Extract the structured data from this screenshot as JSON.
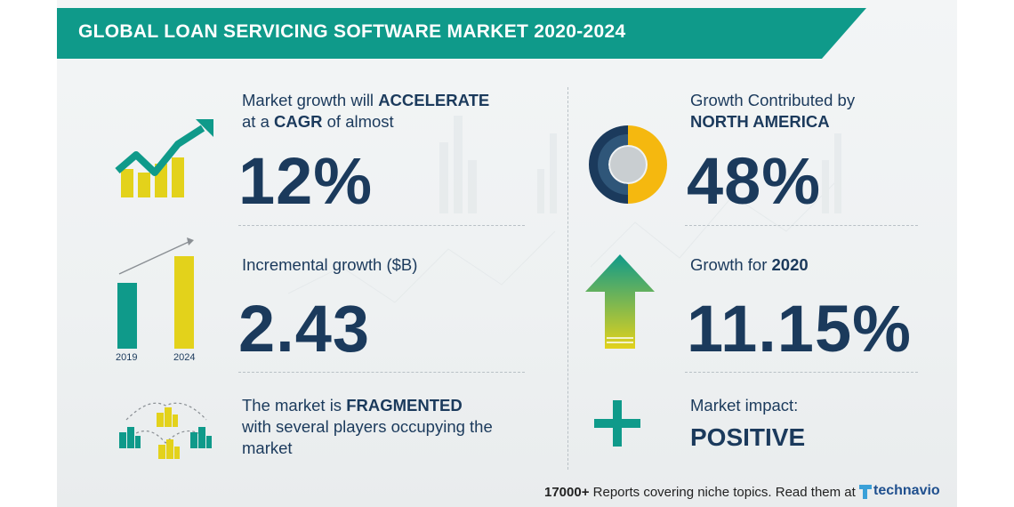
{
  "title": "GLOBAL LOAN SERVICING SOFTWARE MARKET 2020-2024",
  "left": {
    "cagr": {
      "line1_pre": "Market growth will ",
      "line1_bold": "ACCELERATE",
      "line2_pre": "at a ",
      "line2_bold": "CAGR",
      "line2_post": " of almost",
      "value": "12%",
      "icon": "growth-chart-arrow-icon"
    },
    "incremental": {
      "label": "Incremental growth ($B)",
      "value": "2.43",
      "icon": "bar-comparison-icon",
      "year_start": "2019",
      "year_end": "2024",
      "bar_ratio": 0.65
    },
    "fragmented": {
      "line1_pre": "The market is ",
      "line1_bold": "FRAGMENTED",
      "line2": "with several players occupying the",
      "line3": "market",
      "icon": "buildings-network-icon"
    }
  },
  "right": {
    "region": {
      "line1": "Growth Contributed by",
      "line2_bold": "NORTH AMERICA",
      "value": "48%",
      "icon": "donut-share-icon"
    },
    "growth2020": {
      "pre": "Growth for ",
      "bold": "2020",
      "value": "11.15%",
      "icon": "up-arrow-icon"
    },
    "impact": {
      "label": "Market impact:",
      "value": "POSITIVE",
      "icon": "plus-icon"
    }
  },
  "footer": {
    "count": "17000+",
    "text": " Reports covering niche topics. Read them at",
    "brand": "technavio",
    "brand_icon": "technavio-logo-icon"
  },
  "colors": {
    "teal": "#0f9a8a",
    "navy": "#1b3a5c",
    "yellow": "#e3d21b",
    "amber": "#f5b80f"
  }
}
